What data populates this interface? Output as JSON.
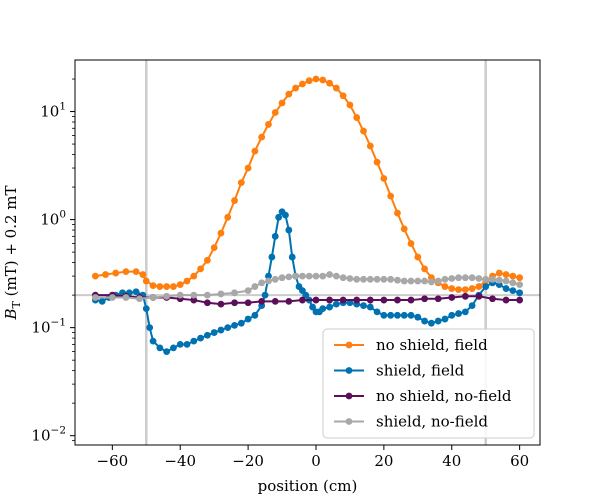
{
  "chart_data": {
    "type": "line",
    "xlabel": "position (cm)",
    "ylabel_main": "B",
    "ylabel_sub": "T",
    "ylabel_rest": " (mT) + 0.2 mT",
    "xlim": [
      -71,
      66
    ],
    "ylim": [
      0.0082,
      30
    ],
    "yscale": "log",
    "xticks": [
      -60,
      -40,
      -20,
      0,
      20,
      40,
      60
    ],
    "xtick_labels": [
      "−60",
      "−40",
      "−20",
      "0",
      "20",
      "40",
      "60"
    ],
    "yticks": [
      0.01,
      0.1,
      1,
      10
    ],
    "ytick_base": "10",
    "ytick_exponents": [
      "−2",
      "−1",
      "0",
      "1"
    ],
    "vlines": [
      -50,
      50
    ],
    "hline": 0.2,
    "reference_line_color": "#cccccc",
    "legend_position": "lower right",
    "series": [
      {
        "name": "no shield, field",
        "color": "#ff7f0e",
        "points": [
          [
            -65,
            0.3
          ],
          [
            -62,
            0.31
          ],
          [
            -59,
            0.32
          ],
          [
            -56,
            0.33
          ],
          [
            -53,
            0.33
          ],
          [
            -51,
            0.31
          ],
          [
            -50,
            0.27
          ],
          [
            -48,
            0.245
          ],
          [
            -46,
            0.24
          ],
          [
            -44,
            0.24
          ],
          [
            -42,
            0.24
          ],
          [
            -40,
            0.25
          ],
          [
            -38,
            0.27
          ],
          [
            -36,
            0.3
          ],
          [
            -34,
            0.35
          ],
          [
            -32,
            0.42
          ],
          [
            -30,
            0.55
          ],
          [
            -28,
            0.75
          ],
          [
            -26,
            1.05
          ],
          [
            -24,
            1.5
          ],
          [
            -22,
            2.2
          ],
          [
            -20,
            3.0
          ],
          [
            -18,
            4.3
          ],
          [
            -16,
            5.8
          ],
          [
            -14,
            7.6
          ],
          [
            -12,
            9.8
          ],
          [
            -10,
            12
          ],
          [
            -8,
            14.5
          ],
          [
            -6,
            16.5
          ],
          [
            -4,
            18
          ],
          [
            -2,
            19.3
          ],
          [
            0,
            20
          ],
          [
            2,
            19.6
          ],
          [
            4,
            18.3
          ],
          [
            6,
            16.5
          ],
          [
            8,
            14
          ],
          [
            10,
            11.5
          ],
          [
            12,
            8.8
          ],
          [
            14,
            6.6
          ],
          [
            16,
            4.8
          ],
          [
            18,
            3.4
          ],
          [
            20,
            2.4
          ],
          [
            22,
            1.65
          ],
          [
            24,
            1.15
          ],
          [
            26,
            0.82
          ],
          [
            28,
            0.6
          ],
          [
            30,
            0.45
          ],
          [
            32,
            0.35
          ],
          [
            34,
            0.29
          ],
          [
            36,
            0.26
          ],
          [
            38,
            0.24
          ],
          [
            40,
            0.23
          ],
          [
            42,
            0.225
          ],
          [
            44,
            0.225
          ],
          [
            46,
            0.23
          ],
          [
            48,
            0.24
          ],
          [
            50,
            0.27
          ],
          [
            52,
            0.3
          ],
          [
            54,
            0.32
          ],
          [
            56,
            0.31
          ],
          [
            58,
            0.3
          ],
          [
            60,
            0.29
          ]
        ]
      },
      {
        "name": "shield, field",
        "color": "#0072b2",
        "points": [
          [
            -65,
            0.18
          ],
          [
            -63,
            0.175
          ],
          [
            -61,
            0.19
          ],
          [
            -59,
            0.2
          ],
          [
            -57,
            0.21
          ],
          [
            -55,
            0.21
          ],
          [
            -53,
            0.215
          ],
          [
            -51,
            0.2
          ],
          [
            -50,
            0.15
          ],
          [
            -49,
            0.1
          ],
          [
            -48,
            0.075
          ],
          [
            -46,
            0.065
          ],
          [
            -44,
            0.06
          ],
          [
            -42,
            0.065
          ],
          [
            -40,
            0.07
          ],
          [
            -38,
            0.07
          ],
          [
            -36,
            0.075
          ],
          [
            -34,
            0.08
          ],
          [
            -32,
            0.085
          ],
          [
            -30,
            0.09
          ],
          [
            -28,
            0.095
          ],
          [
            -26,
            0.1
          ],
          [
            -24,
            0.105
          ],
          [
            -22,
            0.11
          ],
          [
            -20,
            0.12
          ],
          [
            -18,
            0.13
          ],
          [
            -16,
            0.16
          ],
          [
            -15,
            0.2
          ],
          [
            -14,
            0.3
          ],
          [
            -13,
            0.45
          ],
          [
            -12,
            0.7
          ],
          [
            -11,
            1.05
          ],
          [
            -10,
            1.18
          ],
          [
            -9,
            1.1
          ],
          [
            -8,
            0.8
          ],
          [
            -7,
            0.45
          ],
          [
            -6,
            0.3
          ],
          [
            -5,
            0.24
          ],
          [
            -4,
            0.22
          ],
          [
            -3,
            0.2
          ],
          [
            -2,
            0.18
          ],
          [
            -1,
            0.155
          ],
          [
            0,
            0.14
          ],
          [
            1,
            0.14
          ],
          [
            2,
            0.15
          ],
          [
            4,
            0.155
          ],
          [
            6,
            0.165
          ],
          [
            8,
            0.17
          ],
          [
            10,
            0.17
          ],
          [
            12,
            0.165
          ],
          [
            14,
            0.16
          ],
          [
            16,
            0.155
          ],
          [
            18,
            0.14
          ],
          [
            20,
            0.13
          ],
          [
            22,
            0.13
          ],
          [
            24,
            0.13
          ],
          [
            26,
            0.13
          ],
          [
            28,
            0.13
          ],
          [
            30,
            0.125
          ],
          [
            32,
            0.115
          ],
          [
            34,
            0.11
          ],
          [
            36,
            0.115
          ],
          [
            38,
            0.12
          ],
          [
            40,
            0.13
          ],
          [
            42,
            0.135
          ],
          [
            44,
            0.14
          ],
          [
            46,
            0.16
          ],
          [
            48,
            0.2
          ],
          [
            50,
            0.24
          ],
          [
            52,
            0.26
          ],
          [
            54,
            0.25
          ],
          [
            56,
            0.23
          ],
          [
            58,
            0.22
          ],
          [
            60,
            0.21
          ]
        ]
      },
      {
        "name": "no shield, no-field",
        "color": "#5b0f5b",
        "points": [
          [
            -65,
            0.2
          ],
          [
            -60,
            0.2
          ],
          [
            -56,
            0.195
          ],
          [
            -52,
            0.19
          ],
          [
            -48,
            0.19
          ],
          [
            -44,
            0.19
          ],
          [
            -40,
            0.185
          ],
          [
            -36,
            0.18
          ],
          [
            -32,
            0.17
          ],
          [
            -28,
            0.165
          ],
          [
            -24,
            0.17
          ],
          [
            -20,
            0.17
          ],
          [
            -16,
            0.175
          ],
          [
            -12,
            0.175
          ],
          [
            -8,
            0.175
          ],
          [
            -4,
            0.18
          ],
          [
            0,
            0.18
          ],
          [
            4,
            0.18
          ],
          [
            8,
            0.18
          ],
          [
            12,
            0.18
          ],
          [
            16,
            0.18
          ],
          [
            20,
            0.18
          ],
          [
            24,
            0.18
          ],
          [
            28,
            0.18
          ],
          [
            32,
            0.185
          ],
          [
            36,
            0.185
          ],
          [
            40,
            0.19
          ],
          [
            44,
            0.195
          ],
          [
            48,
            0.195
          ],
          [
            52,
            0.185
          ],
          [
            56,
            0.18
          ],
          [
            60,
            0.18
          ]
        ]
      },
      {
        "name": "shield, no-field",
        "color": "#a8a8a8",
        "points": [
          [
            -65,
            0.19
          ],
          [
            -60,
            0.19
          ],
          [
            -56,
            0.19
          ],
          [
            -52,
            0.185
          ],
          [
            -48,
            0.19
          ],
          [
            -44,
            0.195
          ],
          [
            -40,
            0.2
          ],
          [
            -36,
            0.2
          ],
          [
            -32,
            0.2
          ],
          [
            -28,
            0.205
          ],
          [
            -24,
            0.21
          ],
          [
            -20,
            0.22
          ],
          [
            -18,
            0.24
          ],
          [
            -16,
            0.26
          ],
          [
            -14,
            0.27
          ],
          [
            -12,
            0.28
          ],
          [
            -10,
            0.29
          ],
          [
            -8,
            0.295
          ],
          [
            -6,
            0.3
          ],
          [
            -4,
            0.3
          ],
          [
            -2,
            0.3
          ],
          [
            0,
            0.3
          ],
          [
            2,
            0.3
          ],
          [
            4,
            0.31
          ],
          [
            6,
            0.3
          ],
          [
            8,
            0.29
          ],
          [
            10,
            0.285
          ],
          [
            12,
            0.28
          ],
          [
            14,
            0.28
          ],
          [
            16,
            0.28
          ],
          [
            18,
            0.28
          ],
          [
            20,
            0.28
          ],
          [
            22,
            0.28
          ],
          [
            24,
            0.275
          ],
          [
            26,
            0.27
          ],
          [
            28,
            0.27
          ],
          [
            30,
            0.27
          ],
          [
            32,
            0.27
          ],
          [
            34,
            0.265
          ],
          [
            36,
            0.27
          ],
          [
            38,
            0.28
          ],
          [
            40,
            0.285
          ],
          [
            42,
            0.29
          ],
          [
            44,
            0.29
          ],
          [
            46,
            0.29
          ],
          [
            48,
            0.285
          ],
          [
            50,
            0.28
          ],
          [
            52,
            0.28
          ],
          [
            54,
            0.275
          ],
          [
            56,
            0.27
          ],
          [
            58,
            0.26
          ],
          [
            60,
            0.25
          ]
        ]
      }
    ]
  }
}
